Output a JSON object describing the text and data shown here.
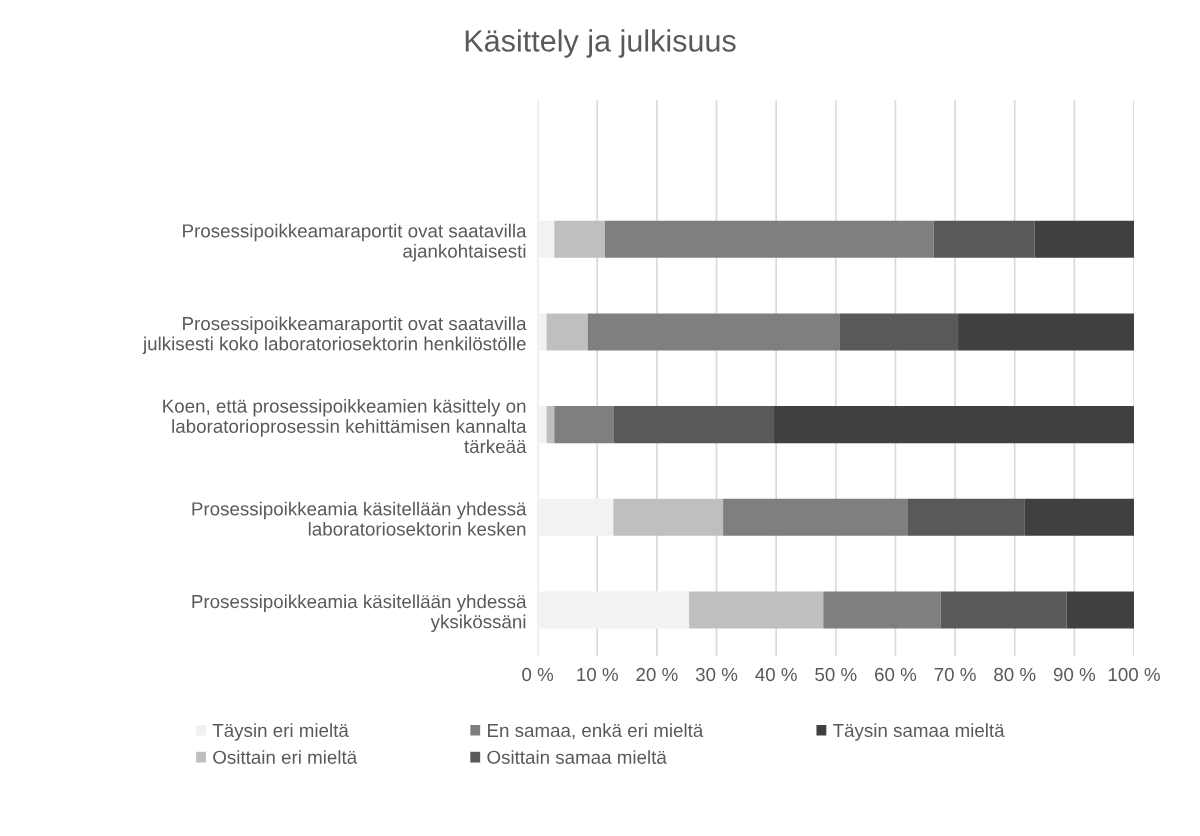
{
  "chart_data": {
    "type": "bar",
    "orientation": "horizontal",
    "stacked": true,
    "title": "Käsittely ja julkisuus",
    "categories": [
      "Prosessipoikkeamaraportit ovat saatavilla\najankohtaisesti",
      "Prosessipoikkeamaraportit ovat saatavilla\njulkisesti koko laboratoriosektorin henkilöstölle",
      "Koen, että prosessipoikkeamien käsittely on\nlaboratorioprosessin kehittämisen kannalta\ntärkeää",
      "Prosessipoikkeamia käsitellään yhdessä\nlaboratoriosektorin kesken",
      "Prosessipoikkeamia käsitellään yhdessä\nyksikössäni"
    ],
    "series": [
      {
        "name": "Täysin eri mieltä",
        "color": "#f2f2f2",
        "values": [
          2.8,
          1.5,
          1.5,
          12.7,
          25.4
        ]
      },
      {
        "name": "Osittain eri mieltä",
        "color": "#bfbfbf",
        "values": [
          8.5,
          6.9,
          1.3,
          18.4,
          22.5
        ]
      },
      {
        "name": "En samaa, enkä eri mieltä",
        "color": "#7f7f7f",
        "values": [
          55.1,
          42.3,
          9.9,
          31.0,
          19.7
        ]
      },
      {
        "name": "Osittain samaa mieltä",
        "color": "#595959",
        "values": [
          16.9,
          19.8,
          26.8,
          19.6,
          21.1
        ]
      },
      {
        "name": "Täysin samaa mieltä",
        "color": "#404040",
        "values": [
          16.7,
          29.5,
          60.5,
          18.3,
          11.3
        ]
      }
    ],
    "xlim": [
      0,
      100
    ],
    "xticks": [
      {
        "value": 0,
        "label": "0 %"
      },
      {
        "value": 10,
        "label": "10 %"
      },
      {
        "value": 20,
        "label": "20 %"
      },
      {
        "value": 30,
        "label": "30 %"
      },
      {
        "value": 40,
        "label": "40 %"
      },
      {
        "value": 50,
        "label": "50 %"
      },
      {
        "value": 60,
        "label": "60 %"
      },
      {
        "value": 70,
        "label": "70 %"
      },
      {
        "value": 80,
        "label": "80 %"
      },
      {
        "value": 90,
        "label": "90 %"
      },
      {
        "value": 100,
        "label": "100 %"
      }
    ],
    "grid": "x",
    "legend": "bottom"
  }
}
